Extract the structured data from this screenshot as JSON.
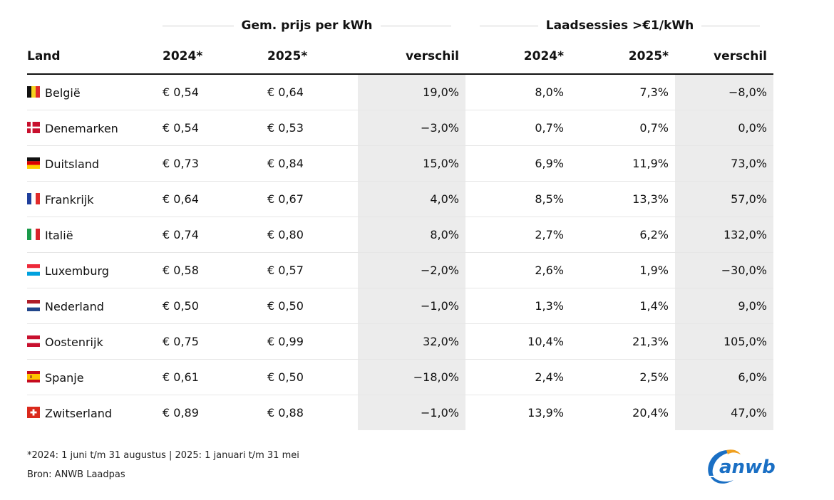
{
  "header": {
    "group_price": "Gem. prijs per kWh",
    "group_sessions": "Laadsessies >€1/kWh"
  },
  "columns": [
    "Land",
    "2024*",
    "2025*",
    "verschil",
    "2024*",
    "2025*",
    "verschil"
  ],
  "rows": [
    {
      "country": "België",
      "flag": "belgium-flag",
      "p2024": "€ 0,54",
      "p2025": "€ 0,64",
      "pdiff": "19,0%",
      "s2024": "8,0%",
      "s2025": "7,3%",
      "sdiff": "−8,0%"
    },
    {
      "country": "Denemarken",
      "flag": "denmark-flag",
      "p2024": "€ 0,54",
      "p2025": "€ 0,53",
      "pdiff": "−3,0%",
      "s2024": "0,7%",
      "s2025": "0,7%",
      "sdiff": "0,0%"
    },
    {
      "country": "Duitsland",
      "flag": "germany-flag",
      "p2024": "€ 0,73",
      "p2025": "€ 0,84",
      "pdiff": "15,0%",
      "s2024": "6,9%",
      "s2025": "11,9%",
      "sdiff": "73,0%"
    },
    {
      "country": "Frankrijk",
      "flag": "france-flag",
      "p2024": "€ 0,64",
      "p2025": "€ 0,67",
      "pdiff": "4,0%",
      "s2024": "8,5%",
      "s2025": "13,3%",
      "sdiff": "57,0%"
    },
    {
      "country": "Italië",
      "flag": "italy-flag",
      "p2024": "€ 0,74",
      "p2025": "€ 0,80",
      "pdiff": "8,0%",
      "s2024": "2,7%",
      "s2025": "6,2%",
      "sdiff": "132,0%"
    },
    {
      "country": "Luxemburg",
      "flag": "luxembourg-flag",
      "p2024": "€ 0,58",
      "p2025": "€ 0,57",
      "pdiff": "−2,0%",
      "s2024": "2,6%",
      "s2025": "1,9%",
      "sdiff": "−30,0%"
    },
    {
      "country": "Nederland",
      "flag": "netherlands-flag",
      "p2024": "€ 0,50",
      "p2025": "€ 0,50",
      "pdiff": "−1,0%",
      "s2024": "1,3%",
      "s2025": "1,4%",
      "sdiff": "9,0%"
    },
    {
      "country": "Oostenrijk",
      "flag": "austria-flag",
      "p2024": "€ 0,75",
      "p2025": "€ 0,99",
      "pdiff": "32,0%",
      "s2024": "10,4%",
      "s2025": "21,3%",
      "sdiff": "105,0%"
    },
    {
      "country": "Spanje",
      "flag": "spain-flag",
      "p2024": "€ 0,61",
      "p2025": "€ 0,50",
      "pdiff": "−18,0%",
      "s2024": "2,4%",
      "s2025": "2,5%",
      "sdiff": "6,0%"
    },
    {
      "country": "Zwitserland",
      "flag": "switzerland-flag",
      "p2024": "€ 0,89",
      "p2025": "€ 0,88",
      "pdiff": "−1,0%",
      "s2024": "13,9%",
      "s2025": "20,4%",
      "sdiff": "47,0%"
    }
  ],
  "footnote": "*2024: 1 juni t/m 31 augustus | 2025: 1 januari t/m 31 mei",
  "source": "Bron: ANWB Laadpas",
  "logo": {
    "text": "anwb",
    "icon": "anwb-logo",
    "colors": {
      "blue": "#1a6fc4",
      "orange": "#f0a020"
    }
  },
  "colors": {
    "shade": "#ececec",
    "rule": "#111111",
    "divider": "#e6e6e6"
  }
}
